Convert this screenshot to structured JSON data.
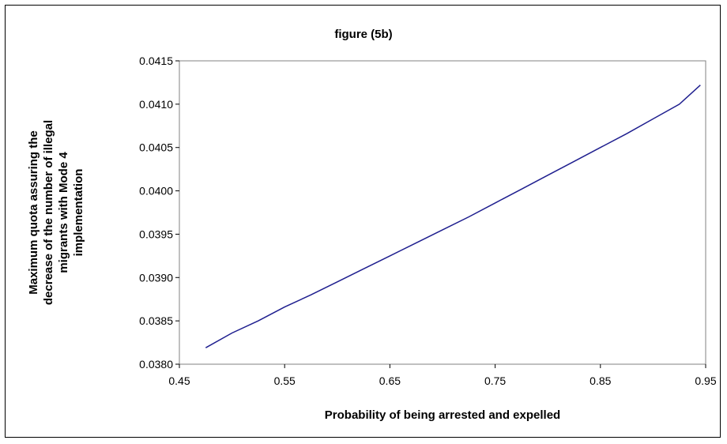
{
  "chart_data": {
    "type": "line",
    "title": "figure (5b)",
    "xlabel": "Probability of being arrested and expelled",
    "ylabel_lines": [
      "Maximum quota assuring the",
      "decrease of the number of illegal",
      "migrants with Mode 4",
      "implementation"
    ],
    "xlim": [
      0.45,
      0.95
    ],
    "ylim": [
      0.038,
      0.0415
    ],
    "x_ticks": [
      "0.45",
      "0.55",
      "0.65",
      "0.75",
      "0.85",
      "0.95"
    ],
    "y_ticks": [
      "0.0380",
      "0.0385",
      "0.0390",
      "0.0395",
      "0.0400",
      "0.0405",
      "0.0410",
      "0.0415"
    ],
    "grid": false,
    "legend": "none",
    "series": [
      {
        "color": "#1f1f8f",
        "x": [
          0.475,
          0.5,
          0.525,
          0.55,
          0.575,
          0.6,
          0.625,
          0.65,
          0.675,
          0.7,
          0.725,
          0.75,
          0.775,
          0.8,
          0.825,
          0.85,
          0.875,
          0.9,
          0.925,
          0.945
        ],
        "y": [
          0.03819,
          0.03836,
          0.0385,
          0.03866,
          0.0388,
          0.03895,
          0.0391,
          0.03925,
          0.0394,
          0.03955,
          0.0397,
          0.03986,
          0.04002,
          0.04018,
          0.04034,
          0.0405,
          0.04066,
          0.04083,
          0.041,
          0.04122
        ]
      }
    ]
  }
}
